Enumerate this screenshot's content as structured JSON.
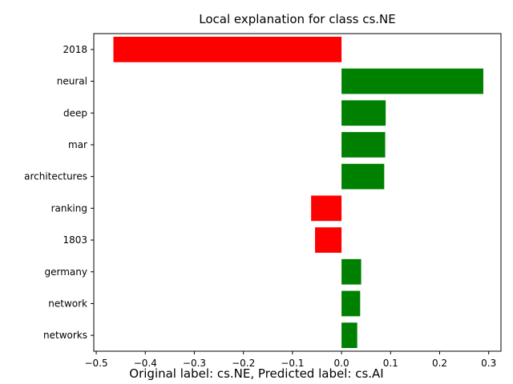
{
  "caption": "Original label: cs.NE, Predicted label: cs.AI",
  "colors": {
    "positive": "#008000",
    "negative": "#ff0000"
  },
  "chart_data": {
    "type": "bar",
    "orientation": "horizontal",
    "title": "Local explanation for class cs.NE",
    "xlabel": "",
    "ylabel": "",
    "xlim": [
      -0.505,
      0.325
    ],
    "xticks": [
      -0.5,
      -0.4,
      -0.3,
      -0.2,
      -0.1,
      0.0,
      0.1,
      0.2,
      0.3
    ],
    "xtick_labels": [
      "−0.5",
      "−0.4",
      "−0.3",
      "−0.2",
      "−0.1",
      "0.0",
      "0.1",
      "0.2",
      "0.3"
    ],
    "grid": false,
    "legend": "none",
    "categories": [
      "2018",
      "neural",
      "deep",
      "mar",
      "architectures",
      "ranking",
      "1803",
      "germany",
      "network",
      "networks"
    ],
    "values": [
      -0.465,
      0.289,
      0.09,
      0.089,
      0.087,
      -0.062,
      -0.054,
      0.04,
      0.038,
      0.032
    ]
  }
}
